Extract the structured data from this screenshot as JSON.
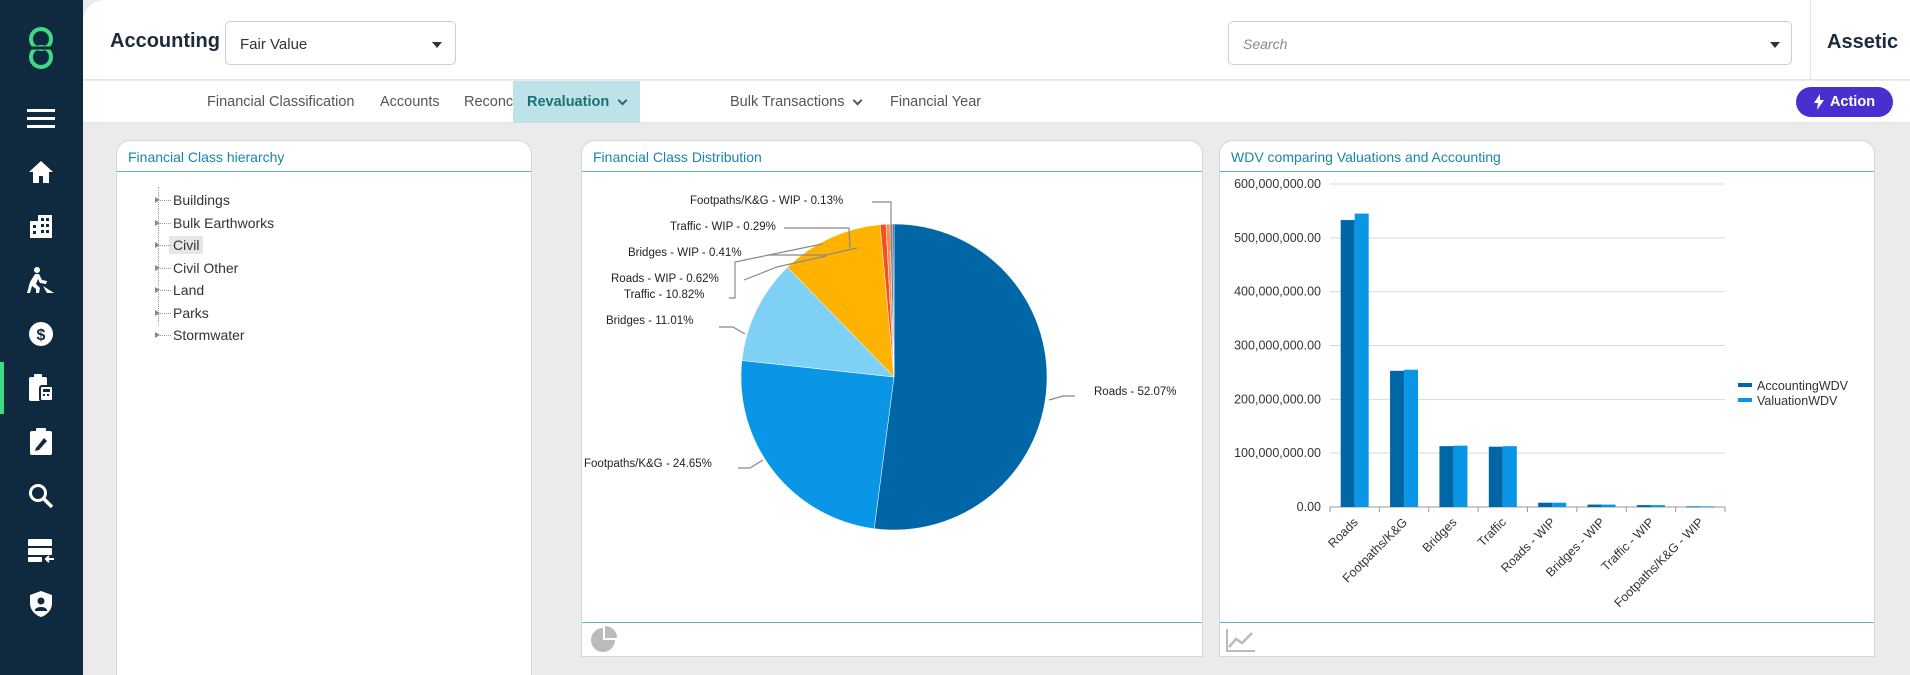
{
  "header": {
    "title": "Accounting",
    "view_select": "Fair Value",
    "search_placeholder": "Search",
    "brand": "Assetic"
  },
  "tabs": [
    {
      "label": "Financial Classification",
      "active": false,
      "dropdown": false
    },
    {
      "label": "Accounts",
      "active": false,
      "dropdown": false
    },
    {
      "label": "Reconciliation",
      "active": false,
      "dropdown": true
    },
    {
      "label": "Revaluation",
      "active": true,
      "dropdown": true
    },
    {
      "label": "Bulk Transactions",
      "active": false,
      "dropdown": true
    },
    {
      "label": "Financial Year",
      "active": false,
      "dropdown": false
    }
  ],
  "action_label": "Action",
  "sidebar": {
    "icons": [
      "menu-icon",
      "home-icon",
      "buildings-icon",
      "work-icon",
      "finance-icon",
      "accounting-icon",
      "assessment-icon",
      "search-icon",
      "data-import-icon",
      "security-icon"
    ],
    "active": "accounting-icon",
    "accent_color": "#3ddc84"
  },
  "hierarchy": {
    "title": "Financial Class hierarchy",
    "items": [
      "Buildings",
      "Bulk Earthworks",
      "Civil",
      "Civil Other",
      "Land",
      "Parks",
      "Stormwater"
    ],
    "selected": "Civil"
  },
  "distribution": {
    "title": "Financial Class Distribution",
    "footer_icon": "pie-chart-icon"
  },
  "wdv": {
    "title": "WDV comparing Valuations and Accounting",
    "footer_icon": "line-chart-icon"
  },
  "chart_data": [
    {
      "type": "pie",
      "title": "Financial Class Distribution",
      "labels": [
        "Roads",
        "Footpaths/K&G",
        "Bridges",
        "Traffic",
        "Roads - WIP",
        "Bridges - WIP",
        "Traffic - WIP",
        "Footpaths/K&G - WIP"
      ],
      "values": [
        52.07,
        24.65,
        11.01,
        10.82,
        0.62,
        0.41,
        0.29,
        0.13
      ],
      "label_texts": [
        "Roads - 52.07%",
        "Footpaths/K&G - 24.65%",
        "Bridges - 11.01%",
        "Traffic - 10.82%",
        "Roads - WIP - 0.62%",
        "Bridges - WIP - 0.41%",
        "Traffic - WIP - 0.29%",
        "Footpaths/K&G - WIP - 0.13%"
      ],
      "colors": [
        "#0066a6",
        "#0a96e6",
        "#7ed1f5",
        "#ffb300",
        "#f4511e",
        "#ff8a50",
        "#5e7fa0",
        "#1e3a5f"
      ]
    },
    {
      "type": "bar",
      "title": "WDV comparing Valuations and Accounting",
      "categories": [
        "Roads",
        "Footpaths/K&G",
        "Bridges",
        "Traffic",
        "Roads - WIP",
        "Bridges - WIP",
        "Traffic - WIP",
        "Footpaths/K&G - WIP"
      ],
      "series": [
        {
          "name": "AccountingWDV",
          "color": "#0066a6",
          "values": [
            533000000,
            253000000,
            113000000,
            112000000,
            8000000,
            4500000,
            3500000,
            1200000
          ]
        },
        {
          "name": "ValuationWDV",
          "color": "#0a96e6",
          "values": [
            545000000,
            255000000,
            114000000,
            113000000,
            8000000,
            4500000,
            3500000,
            1200000
          ]
        }
      ],
      "ylim": [
        0,
        600000000
      ],
      "yticks": [
        "0.00",
        "100,000,000.00",
        "200,000,000.00",
        "300,000,000.00",
        "400,000,000.00",
        "500,000,000.00",
        "600,000,000.00"
      ],
      "legend": "right",
      "grid": true
    }
  ]
}
